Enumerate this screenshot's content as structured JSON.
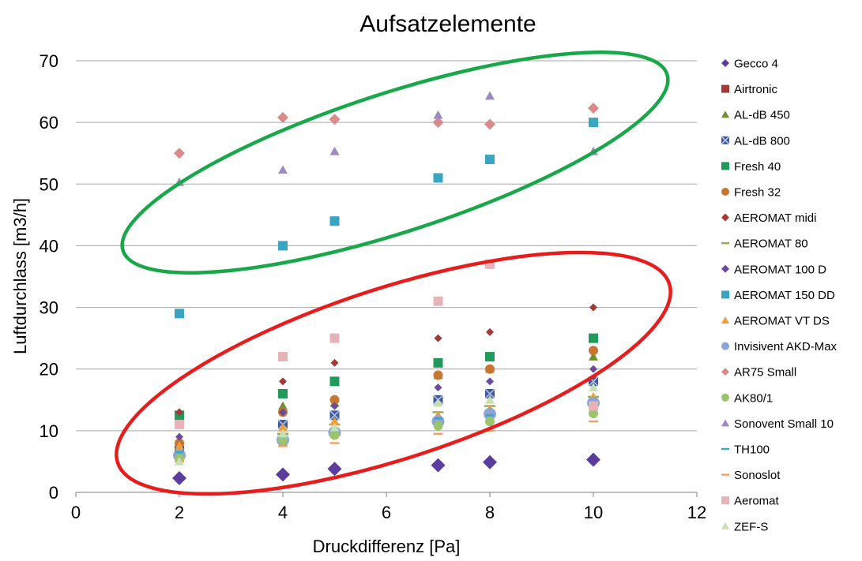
{
  "chart_data": {
    "type": "scatter",
    "title": "Aufsatzelemente",
    "xlabel": "Druckdifferenz [Pa]",
    "ylabel": "Luftdurchlass [m3/h]",
    "xlim": [
      0,
      12
    ],
    "ylim": [
      0,
      70
    ],
    "x_ticks": [
      0,
      2,
      4,
      6,
      8,
      10,
      12
    ],
    "y_ticks": [
      0,
      10,
      20,
      30,
      40,
      50,
      60,
      70
    ],
    "grid": "horizontal",
    "legend_position": "right",
    "series": [
      {
        "name": "Gecco 4",
        "marker": "diamond",
        "color": "#5b3d9e",
        "size": 9,
        "points": [
          [
            2,
            2.3
          ],
          [
            4,
            2.9
          ],
          [
            5,
            3.8
          ],
          [
            7,
            4.4
          ],
          [
            8,
            4.9
          ],
          [
            10,
            5.3
          ]
        ]
      },
      {
        "name": "Airtronic",
        "marker": "square",
        "color": "#a33a3a",
        "size": 5,
        "points": [
          [
            2,
            7.5
          ],
          [
            4,
            8.0
          ],
          [
            5,
            9.5
          ],
          [
            7,
            11.0
          ],
          [
            8,
            12.0
          ],
          [
            10,
            13.5
          ]
        ]
      },
      {
        "name": "AL-dB 450",
        "marker": "triangle",
        "color": "#6f8f2f",
        "size": 6,
        "points": [
          [
            2,
            8.5
          ],
          [
            4,
            14.0
          ],
          [
            5,
            14.5
          ],
          [
            7,
            19.0
          ],
          [
            8,
            20.0
          ],
          [
            10,
            22.0
          ]
        ]
      },
      {
        "name": "AL-dB 800",
        "marker": "xsquare",
        "color": "#3d5a9e",
        "size": 6,
        "points": [
          [
            2,
            7.0
          ],
          [
            4,
            11.0
          ],
          [
            5,
            12.5
          ],
          [
            7,
            15.0
          ],
          [
            8,
            16.0
          ],
          [
            10,
            18.0
          ]
        ]
      },
      {
        "name": "Fresh 40",
        "marker": "square",
        "color": "#1f9a5a",
        "size": 6,
        "points": [
          [
            2,
            12.5
          ],
          [
            4,
            16.0
          ],
          [
            5,
            18.0
          ],
          [
            7,
            21.0
          ],
          [
            8,
            22.0
          ],
          [
            10,
            25.0
          ]
        ]
      },
      {
        "name": "Fresh 32",
        "marker": "circle",
        "color": "#c87530",
        "size": 6,
        "points": [
          [
            2,
            8.0
          ],
          [
            4,
            13.0
          ],
          [
            5,
            15.0
          ],
          [
            7,
            19.0
          ],
          [
            8,
            20.0
          ],
          [
            10,
            23.0
          ]
        ]
      },
      {
        "name": "AEROMAT midi",
        "marker": "diamond",
        "color": "#a33a3a",
        "size": 5,
        "points": [
          [
            2,
            13.0
          ],
          [
            4,
            18.0
          ],
          [
            5,
            21.0
          ],
          [
            7,
            25.0
          ],
          [
            8,
            26.0
          ],
          [
            10,
            30.0
          ]
        ]
      },
      {
        "name": "AEROMAT 80",
        "marker": "dash",
        "color": "#8fb04a",
        "size": 7,
        "points": [
          [
            2,
            6.0
          ],
          [
            4,
            9.5
          ],
          [
            5,
            11.0
          ],
          [
            7,
            13.0
          ],
          [
            8,
            14.0
          ],
          [
            10,
            15.5
          ]
        ]
      },
      {
        "name": "AEROMAT 100 D",
        "marker": "diamond",
        "color": "#6b4a9e",
        "size": 5,
        "points": [
          [
            2,
            9.0
          ],
          [
            4,
            13.0
          ],
          [
            5,
            14.0
          ],
          [
            7,
            17.0
          ],
          [
            8,
            18.0
          ],
          [
            10,
            20.0
          ]
        ]
      },
      {
        "name": "AEROMAT 150 DD",
        "marker": "square",
        "color": "#3aa5c0",
        "size": 6,
        "points": [
          [
            2,
            29.0
          ],
          [
            4,
            40.0
          ],
          [
            5,
            44.0
          ],
          [
            7,
            51.0
          ],
          [
            8,
            54.0
          ],
          [
            10,
            60.0
          ]
        ]
      },
      {
        "name": "AEROMAT VT DS",
        "marker": "triangle",
        "color": "#f0a03a",
        "size": 6,
        "points": [
          [
            2,
            7.5
          ],
          [
            4,
            10.5
          ],
          [
            5,
            11.5
          ],
          [
            7,
            12.5
          ],
          [
            8,
            13.5
          ],
          [
            10,
            15.5
          ]
        ]
      },
      {
        "name": "Invisivent AKD-Max",
        "marker": "circle",
        "color": "#8ba6d6",
        "size": 8,
        "points": [
          [
            2,
            6.0
          ],
          [
            4,
            8.5
          ],
          [
            5,
            9.7
          ],
          [
            7,
            11.5
          ],
          [
            8,
            12.7
          ],
          [
            10,
            14.5
          ]
        ]
      },
      {
        "name": "AR75 Small",
        "marker": "diamond",
        "color": "#d98a8a",
        "size": 7,
        "points": [
          [
            2,
            55.0
          ],
          [
            4,
            60.8
          ],
          [
            5,
            60.5
          ],
          [
            7,
            60.0
          ],
          [
            8,
            59.7
          ],
          [
            10,
            62.3
          ]
        ]
      },
      {
        "name": "AK80/1",
        "marker": "circle",
        "color": "#9cc46a",
        "size": 6,
        "points": [
          [
            2,
            5.5
          ],
          [
            4,
            8.5
          ],
          [
            5,
            9.3
          ],
          [
            7,
            10.8
          ],
          [
            8,
            11.5
          ],
          [
            10,
            12.8
          ]
        ]
      },
      {
        "name": "Sonovent Small 10",
        "marker": "triangle",
        "color": "#9e8ac2",
        "size": 6,
        "points": [
          [
            2,
            50.3
          ],
          [
            4,
            52.3
          ],
          [
            5,
            55.3
          ],
          [
            7,
            61.2
          ],
          [
            8,
            64.3
          ],
          [
            10,
            55.3
          ]
        ]
      },
      {
        "name": "TH100",
        "marker": "dash",
        "color": "#3aa5c0",
        "size": 5,
        "points": [
          [
            2,
            6.5
          ],
          [
            4,
            9.0
          ],
          [
            5,
            10.0
          ],
          [
            7,
            12.0
          ],
          [
            8,
            12.5
          ],
          [
            10,
            14.0
          ]
        ]
      },
      {
        "name": "Sonoslot",
        "marker": "dash",
        "color": "#f0a06a",
        "size": 6,
        "points": [
          [
            2,
            5.0
          ],
          [
            4,
            7.5
          ],
          [
            5,
            8.0
          ],
          [
            7,
            9.5
          ],
          [
            8,
            10.0
          ],
          [
            10,
            11.5
          ]
        ]
      },
      {
        "name": "Aeromat",
        "marker": "square",
        "color": "#e6b3b8",
        "size": 6,
        "points": [
          [
            2,
            11.0
          ],
          [
            4,
            22.0
          ],
          [
            5,
            25.0
          ],
          [
            7,
            31.0
          ],
          [
            8,
            37.0
          ],
          [
            10,
            14.0
          ]
        ]
      },
      {
        "name": "ZEF-S",
        "marker": "triangle",
        "color": "#c9dfb0",
        "size": 6,
        "points": [
          [
            2,
            5.0
          ],
          [
            4,
            9.5
          ],
          [
            5,
            10.5
          ],
          [
            7,
            14.5
          ],
          [
            8,
            15.0
          ],
          [
            10,
            17.0
          ]
        ]
      }
    ],
    "annotations": [
      {
        "shape": "ellipse",
        "color": "#18a84a",
        "description": "green ellipse around upper point group"
      },
      {
        "shape": "ellipse",
        "color": "#e81c1c",
        "description": "red ellipse around lower point group"
      }
    ]
  }
}
